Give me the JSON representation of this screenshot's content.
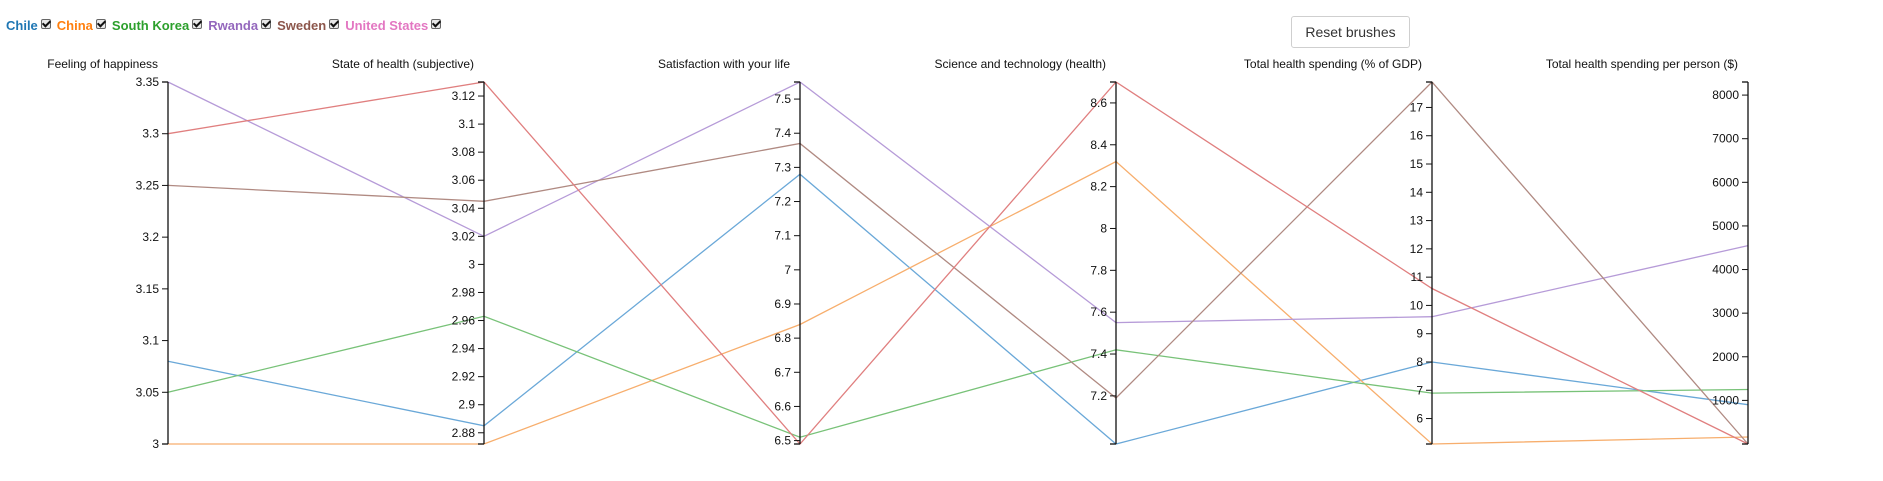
{
  "legend": [
    {
      "label": "Chile",
      "color": "#1f77b4",
      "checked": true
    },
    {
      "label": "China",
      "color": "#ff7f0e",
      "checked": true
    },
    {
      "label": "South Korea",
      "color": "#2ca02c",
      "checked": true
    },
    {
      "label": "Rwanda",
      "color": "#9467bd",
      "checked": true
    },
    {
      "label": "Sweden",
      "color": "#8c564b",
      "checked": true
    },
    {
      "label": "United States",
      "color": "#e377c2",
      "checked": true
    }
  ],
  "reset_button": {
    "label": "Reset brushes"
  },
  "chart_data": {
    "type": "parallel-coordinates",
    "axes": [
      {
        "title": "Feeling of happiness",
        "domain": [
          3,
          3.35
        ],
        "ticks": [
          "3",
          "3.05",
          "3.1",
          "3.15",
          "3.2",
          "3.25",
          "3.3",
          "3.35"
        ],
        "tick_values": [
          3,
          3.05,
          3.1,
          3.15,
          3.2,
          3.25,
          3.3,
          3.35
        ]
      },
      {
        "title": "State of health (subjective)",
        "domain": [
          2.872,
          3.13
        ],
        "ticks": [
          "2.88",
          "2.9",
          "2.92",
          "2.94",
          "2.96",
          "2.98",
          "3",
          "3.02",
          "3.04",
          "3.06",
          "3.08",
          "3.1",
          "3.12"
        ],
        "tick_values": [
          2.88,
          2.9,
          2.92,
          2.94,
          2.96,
          2.98,
          3,
          3.02,
          3.04,
          3.06,
          3.08,
          3.1,
          3.12
        ]
      },
      {
        "title": "Satisfaction with your life",
        "domain": [
          6.49,
          7.55
        ],
        "ticks": [
          "6.5",
          "6.6",
          "6.7",
          "6.8",
          "6.9",
          "7",
          "7.1",
          "7.2",
          "7.3",
          "7.4",
          "7.5"
        ],
        "tick_values": [
          6.5,
          6.6,
          6.7,
          6.8,
          6.9,
          7,
          7.1,
          7.2,
          7.3,
          7.4,
          7.5
        ]
      },
      {
        "title": "Science and technology (health)",
        "domain": [
          6.97,
          8.7
        ],
        "ticks": [
          "7.2",
          "7.4",
          "7.6",
          "7.8",
          "8",
          "8.2",
          "8.4",
          "8.6"
        ],
        "tick_values": [
          7.2,
          7.4,
          7.6,
          7.8,
          8,
          8.2,
          8.4,
          8.6
        ]
      },
      {
        "title": "Total health spending (% of GDP)",
        "domain": [
          5.1,
          17.9
        ],
        "ticks": [
          "6",
          "7",
          "8",
          "9",
          "10",
          "11",
          "12",
          "13",
          "14",
          "15",
          "16",
          "17"
        ],
        "tick_values": [
          6,
          7,
          8,
          9,
          10,
          11,
          12,
          13,
          14,
          15,
          16,
          17
        ]
      },
      {
        "title": "Total health spending per person ($)",
        "domain": [
          0,
          8300
        ],
        "ticks": [
          "1000",
          "2000",
          "3000",
          "4000",
          "5000",
          "6000",
          "7000",
          "8000"
        ],
        "tick_values": [
          1000,
          2000,
          3000,
          4000,
          5000,
          6000,
          7000,
          8000
        ]
      }
    ],
    "series": [
      {
        "name": "Chile",
        "color": "#6aa8d8",
        "values": [
          3.08,
          2.885,
          7.28,
          6.97,
          8.0,
          900
        ]
      },
      {
        "name": "China",
        "color": "#f7ae6d",
        "values": [
          3.0,
          2.872,
          6.84,
          8.32,
          5.1,
          160
        ]
      },
      {
        "name": "South Korea",
        "color": "#78c278",
        "values": [
          3.05,
          2.963,
          6.51,
          7.42,
          6.9,
          1250
        ]
      },
      {
        "name": "Rwanda",
        "color": "#b69bd8",
        "values": [
          3.35,
          3.02,
          7.55,
          7.55,
          9.6,
          4550
        ]
      },
      {
        "name": "Sweden",
        "color": "#b08a82",
        "values": [
          3.25,
          3.045,
          7.37,
          7.19,
          17.9,
          0
        ]
      },
      {
        "name": "United States",
        "color": "#e07f7f",
        "values": [
          3.3,
          3.13,
          6.49,
          8.7,
          10.6,
          0
        ]
      }
    ]
  }
}
